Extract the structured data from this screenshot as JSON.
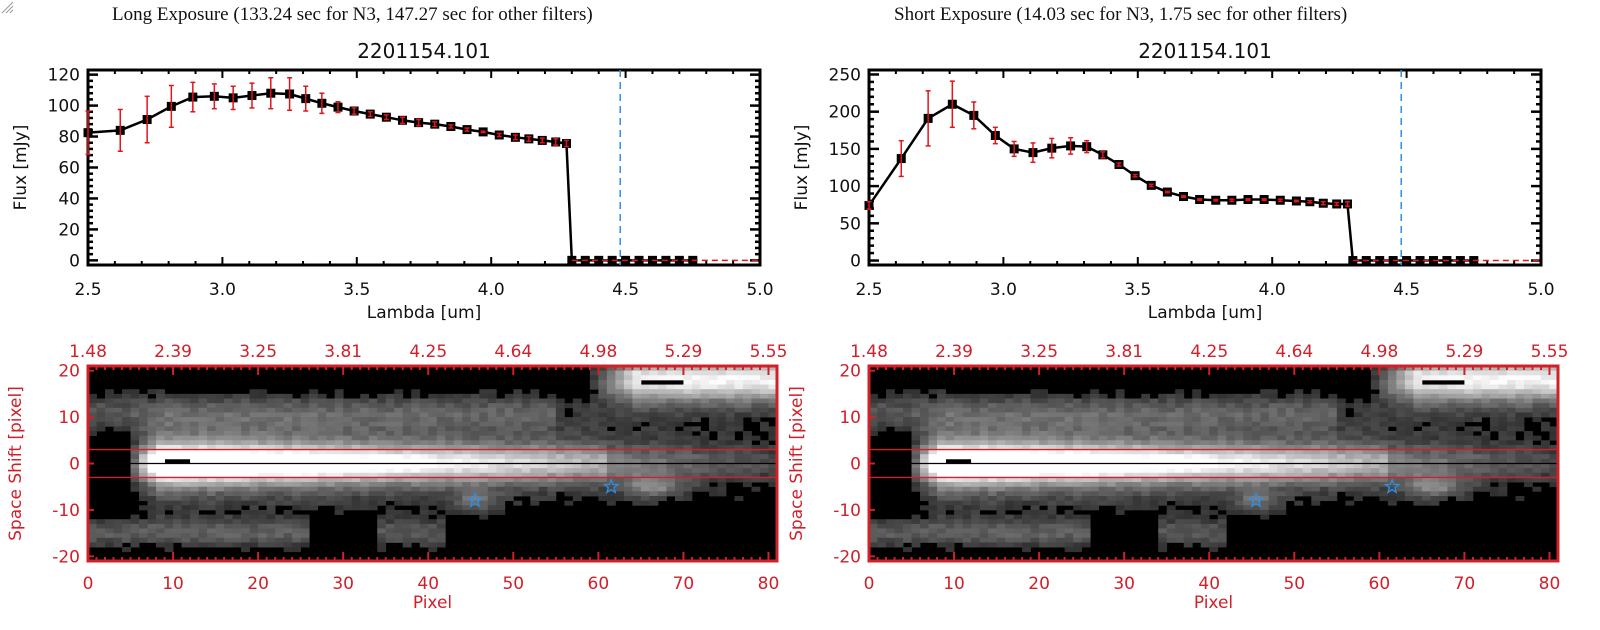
{
  "panels": [
    {
      "title": "Long Exposure (133.24 sec for N3, 147.27 sec for other filters)",
      "object_id": "2201154.101"
    },
    {
      "title": "Short Exposure (14.03 sec for N3, 1.75 sec for other filters)",
      "object_id": "2201154.101"
    }
  ],
  "colors": {
    "line": "#000000",
    "errorbar": "#e0161b",
    "cutoff_line": "#2f8fe6",
    "image_axes": "#d0202a",
    "zero_line": "#e0161b",
    "star_marker": "#2f8fe6"
  },
  "chart_data": [
    {
      "type": "line",
      "panel": "long",
      "title": "2201154.101",
      "xlabel": "Lambda [um]",
      "ylabel": "Flux [mJy]",
      "xlim": [
        2.5,
        5.0
      ],
      "ylim": [
        -3,
        123
      ],
      "xticks": [
        "2.5",
        "3.0",
        "3.5",
        "4.0",
        "4.5",
        "5.0"
      ],
      "yticks": [
        "0",
        "20",
        "40",
        "60",
        "80",
        "100",
        "120"
      ],
      "ytick_values": [
        0,
        20,
        40,
        60,
        80,
        100,
        120
      ],
      "xtick_values": [
        2.5,
        3.0,
        3.5,
        4.0,
        4.5,
        5.0
      ],
      "cutoff_lambda": 4.48,
      "series": [
        {
          "name": "flux",
          "x": [
            2.5,
            2.62,
            2.72,
            2.81,
            2.89,
            2.97,
            3.04,
            3.11,
            3.18,
            3.25,
            3.31,
            3.37,
            3.43,
            3.49,
            3.55,
            3.61,
            3.67,
            3.73,
            3.79,
            3.85,
            3.91,
            3.97,
            4.03,
            4.09,
            4.14,
            4.19,
            4.24,
            4.28,
            4.3,
            4.35,
            4.4,
            4.45,
            4.5,
            4.55,
            4.6,
            4.65,
            4.7,
            4.75
          ],
          "y": [
            82.5,
            84,
            91,
            99.5,
            105.5,
            106,
            105,
            106.5,
            108,
            107.5,
            104.5,
            101.5,
            99,
            96.5,
            94.5,
            92.5,
            90.5,
            89,
            88,
            86.5,
            84.5,
            83,
            81,
            79.5,
            78.5,
            77.5,
            76.5,
            75.5,
            0,
            0,
            0,
            0,
            0,
            0,
            0,
            0,
            0,
            0
          ],
          "yerr": [
            14,
            13.5,
            15,
            13.5,
            9.5,
            8,
            7.5,
            8,
            10,
            10.5,
            8,
            6.5,
            3.5,
            2,
            1.5,
            1.5,
            2,
            2,
            1.5,
            1,
            1,
            0.5,
            1,
            1.5,
            1.5,
            1.5,
            2,
            2,
            0,
            0,
            0,
            0,
            0,
            0,
            0,
            0,
            0,
            0
          ]
        }
      ]
    },
    {
      "type": "line",
      "panel": "short",
      "title": "2201154.101",
      "xlabel": "Lambda [um]",
      "ylabel": "Flux [mJy]",
      "xlim": [
        2.5,
        5.0
      ],
      "ylim": [
        -6,
        256
      ],
      "xticks": [
        "2.5",
        "3.0",
        "3.5",
        "4.0",
        "4.5",
        "5.0"
      ],
      "yticks": [
        "0",
        "50",
        "100",
        "150",
        "200",
        "250"
      ],
      "ytick_values": [
        0,
        50,
        100,
        150,
        200,
        250
      ],
      "xtick_values": [
        2.5,
        3.0,
        3.5,
        4.0,
        4.5,
        5.0
      ],
      "cutoff_lambda": 4.48,
      "series": [
        {
          "name": "flux",
          "x": [
            2.5,
            2.62,
            2.72,
            2.81,
            2.89,
            2.97,
            3.04,
            3.11,
            3.18,
            3.25,
            3.31,
            3.37,
            3.43,
            3.49,
            3.55,
            3.61,
            3.67,
            3.73,
            3.79,
            3.85,
            3.91,
            3.97,
            4.03,
            4.09,
            4.14,
            4.19,
            4.24,
            4.28,
            4.3,
            4.35,
            4.4,
            4.45,
            4.5,
            4.55,
            4.6,
            4.65,
            4.7,
            4.75
          ],
          "y": [
            74,
            137,
            191,
            210,
            195,
            168,
            150,
            145,
            151,
            154,
            153,
            142,
            129,
            114,
            101,
            92,
            86,
            82,
            81,
            81,
            82,
            82,
            81,
            80,
            79,
            77,
            76,
            76,
            0,
            0,
            0,
            0,
            0,
            0,
            0,
            0,
            0,
            0
          ],
          "yerr": [
            5,
            24,
            37,
            31,
            18,
            11,
            10,
            13,
            13,
            11,
            8,
            4,
            2,
            1.5,
            1.5,
            1,
            1,
            1,
            1,
            1.5,
            1,
            1,
            1.5,
            1,
            1.5,
            2,
            2,
            3,
            0,
            0,
            0,
            0,
            0,
            0,
            0,
            0,
            0,
            0
          ]
        }
      ]
    },
    {
      "type": "heatmap",
      "panel": "long",
      "xlabel": "Pixel",
      "ylabel": "Space Shift [pixel]",
      "top_axis_ticks": [
        "1.48",
        "2.39",
        "3.25",
        "3.81",
        "4.25",
        "4.64",
        "4.98",
        "5.29",
        "5.55"
      ],
      "xticks": [
        "0",
        "10",
        "20",
        "30",
        "40",
        "50",
        "60",
        "70",
        "80"
      ],
      "xtick_values": [
        0,
        10,
        20,
        30,
        40,
        50,
        60,
        70,
        80
      ],
      "yticks": [
        "-20",
        "-10",
        "0",
        "10",
        "20"
      ],
      "ytick_values": [
        -20,
        -10,
        0,
        10,
        20
      ],
      "xlim": [
        0,
        81
      ],
      "ylim": [
        -21,
        21
      ],
      "aperture_lines": [
        3,
        -3
      ],
      "center_line": 0,
      "stars": [
        {
          "x": 45.5,
          "y": -8
        },
        {
          "x": 61.5,
          "y": -5
        }
      ]
    },
    {
      "type": "heatmap",
      "panel": "short",
      "xlabel": "Pixel",
      "ylabel": "Space Shift [pixel]",
      "top_axis_ticks": [
        "1.48",
        "2.39",
        "3.25",
        "3.81",
        "4.25",
        "4.64",
        "4.98",
        "5.29",
        "5.55"
      ],
      "xticks": [
        "0",
        "10",
        "20",
        "30",
        "40",
        "50",
        "60",
        "70",
        "80"
      ],
      "xtick_values": [
        0,
        10,
        20,
        30,
        40,
        50,
        60,
        70,
        80
      ],
      "yticks": [
        "-20",
        "-10",
        "0",
        "10",
        "20"
      ],
      "ytick_values": [
        -20,
        -10,
        0,
        10,
        20
      ],
      "xlim": [
        0,
        81
      ],
      "ylim": [
        -21,
        21
      ],
      "aperture_lines": [
        3,
        -3
      ],
      "center_line": 0,
      "stars": [
        {
          "x": 45.5,
          "y": -8
        },
        {
          "x": 61.5,
          "y": -5
        }
      ]
    }
  ]
}
